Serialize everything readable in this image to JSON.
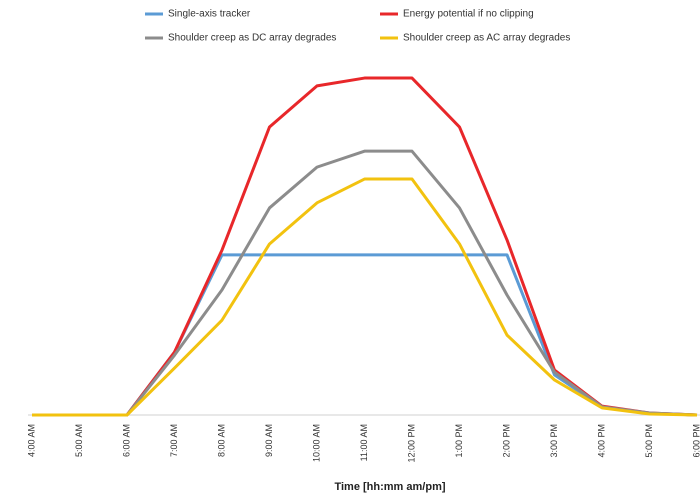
{
  "chart_data": {
    "type": "line",
    "x_label": "Time [hh:mm am/pm]",
    "categories": [
      "4:00 AM",
      "5:00 AM",
      "6:00 AM",
      "7:00 AM",
      "8:00 AM",
      "9:00 AM",
      "10:00 AM",
      "11:00 AM",
      "12:00 PM",
      "1:00 PM",
      "2:00 PM",
      "3:00 PM",
      "4:00 PM",
      "5:00 PM",
      "6:00 PM"
    ],
    "series": [
      {
        "name": "Single-axis tracker",
        "color": "#5b9bd5",
        "values": [
          0,
          0,
          0,
          18.5,
          47.1,
          47.1,
          47.1,
          47.1,
          47.1,
          47.1,
          47.1,
          11.8,
          2.4,
          0.5,
          0
        ]
      },
      {
        "name": "Energy potential if no clipping",
        "color": "#e8272a",
        "values": [
          0,
          0,
          0,
          18.5,
          48.5,
          84.7,
          96.8,
          99.1,
          99.1,
          84.7,
          51.5,
          13.2,
          2.6,
          0.6,
          0
        ]
      },
      {
        "name": "Shoulder creep as DC array degrades",
        "color": "#8c8c8c",
        "values": [
          0,
          0,
          0,
          17.6,
          36.8,
          60.9,
          72.9,
          77.6,
          77.6,
          60.9,
          35.3,
          12.6,
          2.4,
          0.6,
          0
        ]
      },
      {
        "name": "Shoulder creep as AC array degrades",
        "color": "#f2c20f",
        "values": [
          0,
          0,
          0,
          13.8,
          27.9,
          50.3,
          62.4,
          69.4,
          69.4,
          50.3,
          23.5,
          10.3,
          2.1,
          0.3,
          0
        ]
      }
    ],
    "ylim": [
      0,
      100
    ]
  }
}
